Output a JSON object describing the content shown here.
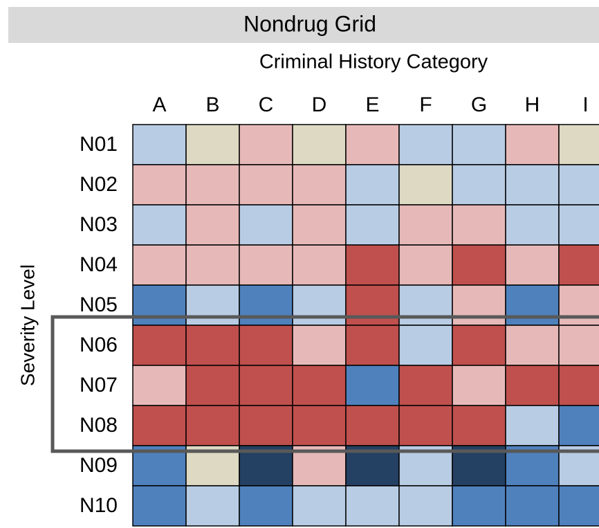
{
  "title": "Nondrug Grid",
  "column_axis_label": "Criminal History Category",
  "row_axis_label": "Severity Level",
  "columns": [
    "A",
    "B",
    "C",
    "D",
    "E",
    "F",
    "G",
    "H",
    "I"
  ],
  "rows": [
    {
      "label": "N01",
      "cells": [
        "#b8cce4",
        "#ddd9c3",
        "#e6b9b8",
        "#ddd9c3",
        "#e6b9b8",
        "#b8cce4",
        "#b8cce4",
        "#e6b9b8",
        "#ddd9c3"
      ]
    },
    {
      "label": "N02",
      "cells": [
        "#e6b9b8",
        "#e6b9b8",
        "#e6b9b8",
        "#e6b9b8",
        "#b8cce4",
        "#ddd9c3",
        "#b8cce4",
        "#b8cce4",
        "#b8cce4"
      ]
    },
    {
      "label": "N03",
      "cells": [
        "#b8cce4",
        "#e6b9b8",
        "#b8cce4",
        "#e6b9b8",
        "#b8cce4",
        "#e6b9b8",
        "#e6b9b8",
        "#b8cce4",
        "#b8cce4"
      ]
    },
    {
      "label": "N04",
      "cells": [
        "#e6b9b8",
        "#e6b9b8",
        "#e6b9b8",
        "#e6b9b8",
        "#c0504d",
        "#e6b9b8",
        "#c0504d",
        "#e6b9b8",
        "#c0504d"
      ]
    },
    {
      "label": "N05",
      "cells": [
        "#4f81bd",
        "#b8cce4",
        "#4f81bd",
        "#b8cce4",
        "#c0504d",
        "#b8cce4",
        "#e6b9b8",
        "#4f81bd",
        "#e6b9b8"
      ]
    },
    {
      "label": "N06",
      "cells": [
        "#c0504d",
        "#c0504d",
        "#c0504d",
        "#e6b9b8",
        "#c0504d",
        "#b8cce4",
        "#c0504d",
        "#e6b9b8",
        "#e6b9b8"
      ]
    },
    {
      "label": "N07",
      "cells": [
        "#e6b9b8",
        "#c0504d",
        "#c0504d",
        "#c0504d",
        "#4f81bd",
        "#c0504d",
        "#e6b9b8",
        "#c0504d",
        "#c0504d"
      ]
    },
    {
      "label": "N08",
      "cells": [
        "#c0504d",
        "#c0504d",
        "#c0504d",
        "#c0504d",
        "#c0504d",
        "#c0504d",
        "#c0504d",
        "#b8cce4",
        "#4f81bd"
      ]
    },
    {
      "label": "N09",
      "cells": [
        "#4f81bd",
        "#ddd9c3",
        "#244062",
        "#e6b9b8",
        "#244062",
        "#b8cce4",
        "#244062",
        "#4f81bd",
        "#b8cce4"
      ]
    },
    {
      "label": "N10",
      "cells": [
        "#4f81bd",
        "#b8cce4",
        "#4f81bd",
        "#b8cce4",
        "#b8cce4",
        "#b8cce4",
        "#4f81bd",
        "#4f81bd",
        "#4f81bd"
      ]
    }
  ]
}
